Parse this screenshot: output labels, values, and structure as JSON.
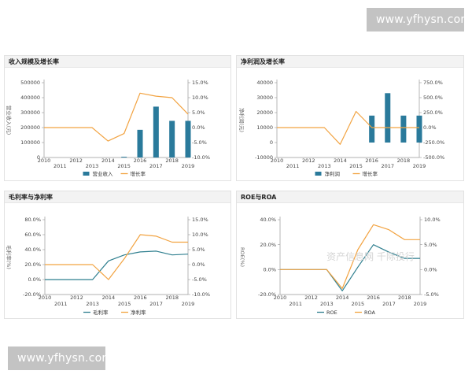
{
  "watermark": {
    "top": "www.yfhysn.com",
    "bottom": "www.yfhysn.com"
  },
  "colors": {
    "bar": "#2a7a9b",
    "line_orange": "#f2a341",
    "line_teal": "#2f7f8f",
    "axis": "#999999",
    "grid": "#e4e4e4"
  },
  "overlay_text": "资产信息网 千际投行",
  "chart_data": [
    {
      "type": "bar",
      "title": "收入规模及增长率",
      "years": [
        "2010",
        "2011",
        "2012",
        "2013",
        "2014",
        "2015",
        "2016",
        "2017",
        "2018",
        "2019"
      ],
      "left_axis": {
        "label": "营业收入(元)",
        "min": 0,
        "max": 500000,
        "ticks": [
          0,
          100000,
          200000,
          300000,
          400000,
          500000
        ],
        "tick_labels": [
          "0",
          "100000",
          "200000",
          "300000",
          "400000",
          "500000"
        ]
      },
      "right_axis": {
        "label": "增长率",
        "min": -10,
        "max": 15,
        "ticks": [
          -10,
          -5,
          0,
          5,
          10,
          15
        ],
        "tick_labels": [
          "-10.0%",
          "-5.0%",
          "0.0%",
          "5.0%",
          "10.0%",
          "15.0%"
        ]
      },
      "series": [
        {
          "name": "营业收入",
          "kind": "bar",
          "axis": "left",
          "values": [
            0,
            0,
            0,
            0,
            0,
            5000,
            185000,
            340000,
            245000,
            245000
          ]
        },
        {
          "name": "增长率",
          "kind": "line",
          "axis": "right",
          "color": "orange",
          "values": [
            0,
            0,
            0,
            0,
            -4.5,
            -2,
            11.5,
            10.5,
            10,
            4.5
          ]
        }
      ],
      "legend": "bottom"
    },
    {
      "type": "bar",
      "title": "净利润及增长率",
      "years": [
        "2010",
        "2011",
        "2012",
        "2013",
        "2014",
        "2015",
        "2016",
        "2017",
        "2018",
        "2019"
      ],
      "left_axis": {
        "label": "净利润(元)",
        "min": -10000,
        "max": 40000,
        "ticks": [
          -10000,
          0,
          10000,
          20000,
          30000,
          40000
        ],
        "tick_labels": [
          "-10000",
          "0",
          "10000",
          "20000",
          "30000",
          "40000"
        ]
      },
      "right_axis": {
        "label": "增长率",
        "min": -500,
        "max": 750,
        "ticks": [
          -500,
          -250,
          0,
          250,
          500,
          750
        ],
        "tick_labels": [
          "-500.0%",
          "-250.0%",
          "0.0%",
          "250.0%",
          "500.0%",
          "750.0%"
        ]
      },
      "series": [
        {
          "name": "净利润",
          "kind": "bar",
          "axis": "left",
          "values": [
            0,
            0,
            0,
            0,
            0,
            0,
            18000,
            33000,
            18000,
            18000
          ]
        },
        {
          "name": "增长率",
          "kind": "line",
          "axis": "right",
          "color": "orange",
          "values": [
            0,
            0,
            0,
            0,
            -280,
            270,
            0,
            0,
            0,
            0
          ]
        }
      ],
      "legend": "bottom"
    },
    {
      "type": "line",
      "title": "毛利率与净利率",
      "years": [
        "2010",
        "2011",
        "2012",
        "2013",
        "2014",
        "2015",
        "2016",
        "2017",
        "2018",
        "2019"
      ],
      "left_axis": {
        "label": "毛利率(%)",
        "min": -20,
        "max": 80,
        "ticks": [
          -20,
          0,
          20,
          40,
          60,
          80
        ],
        "tick_labels": [
          "-20.0%",
          "0.0%",
          "20.0%",
          "40.0%",
          "60.0%",
          "80.0%"
        ]
      },
      "right_axis": {
        "label": "净利率(%)",
        "min": -10,
        "max": 15,
        "ticks": [
          -10,
          -5,
          0,
          5,
          10,
          15
        ],
        "tick_labels": [
          "-10.0%",
          "-5.0%",
          "0.0%",
          "5.0%",
          "10.0%",
          "15.0%"
        ]
      },
      "series": [
        {
          "name": "毛利率",
          "kind": "line",
          "axis": "left",
          "color": "teal",
          "values": [
            0,
            0,
            0,
            0,
            25,
            33,
            37,
            38,
            33,
            34
          ]
        },
        {
          "name": "净利率",
          "kind": "line",
          "axis": "right",
          "color": "orange",
          "values": [
            0,
            0,
            0,
            0,
            -5,
            2,
            10,
            9.5,
            7.5,
            7.5
          ]
        }
      ],
      "legend": "bottom"
    },
    {
      "type": "line",
      "title": "ROE与ROA",
      "years": [
        "2010",
        "2011",
        "2012",
        "2013",
        "2014",
        "2015",
        "2016",
        "2017",
        "2018",
        "2019"
      ],
      "left_axis": {
        "label": "ROE(%)",
        "min": -20,
        "max": 40,
        "ticks": [
          -20,
          0,
          20,
          40
        ],
        "tick_labels": [
          "-20.0%",
          "0.0%",
          "20.0%",
          "40.0%"
        ]
      },
      "right_axis": {
        "label": "ROA(%)",
        "min": -5,
        "max": 10,
        "ticks": [
          -5,
          0,
          5,
          10
        ],
        "tick_labels": [
          "-5.0%",
          "0.0%",
          "5.0%",
          "10.0%"
        ]
      },
      "series": [
        {
          "name": "ROE",
          "kind": "line",
          "axis": "left",
          "color": "teal",
          "values": [
            0,
            0,
            0,
            0,
            -17,
            2,
            20,
            14,
            9,
            9
          ]
        },
        {
          "name": "ROA",
          "kind": "line",
          "axis": "right",
          "color": "orange",
          "values": [
            0,
            0,
            0,
            0,
            -3.8,
            4,
            9,
            8,
            6,
            6
          ]
        }
      ],
      "legend": "bottom"
    }
  ]
}
